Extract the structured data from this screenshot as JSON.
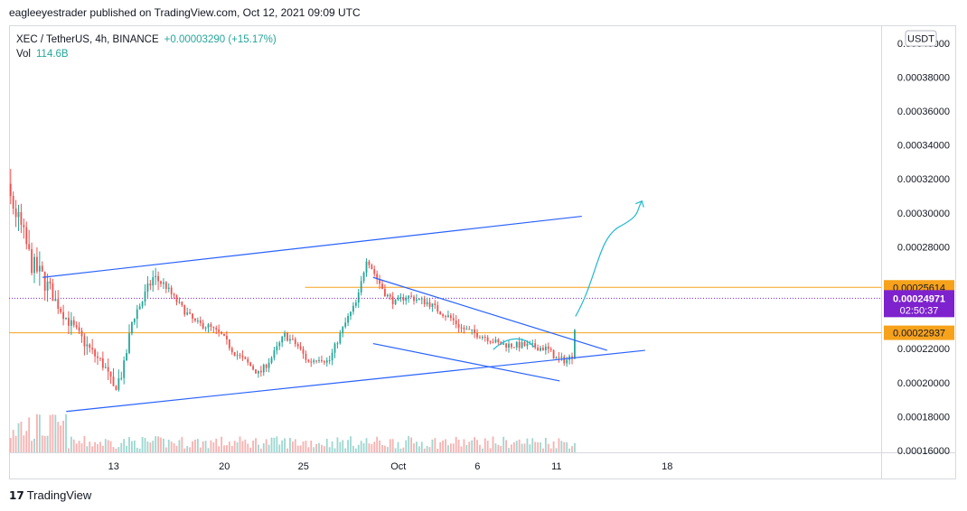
{
  "header": {
    "published_text": "eagleeyestrader published on TradingView.com, Oct 12, 2021 09:09 UTC"
  },
  "legend": {
    "symbol": "XEC / TetherUS, 4h, BINANCE",
    "change": "+0.00003290 (+15.17%)",
    "volume_label": "Vol",
    "volume_value": "114.6B"
  },
  "footer": {
    "logo_glyph": "17",
    "brand": "TradingView"
  },
  "colors": {
    "up": "#26a69a",
    "down": "#ef5350",
    "trend": "#2962ff",
    "level": "#f7a21b",
    "arrow": "#22b8cf",
    "price_label": "#7e22ce"
  },
  "chart_data": {
    "type": "candlestick",
    "currency": "USDT",
    "ylim": [
      0.00016,
      0.00041
    ],
    "y_ticks": [
      "0.00016000",
      "0.00018000",
      "0.00020000",
      "0.00022000",
      "0.00028000",
      "0.00030000",
      "0.00032000",
      "0.00034000",
      "0.00036000",
      "0.00038000",
      "0.00040000"
    ],
    "x_ticks": [
      {
        "label": "6",
        "day": 6
      },
      {
        "label": "13",
        "day": 13
      },
      {
        "label": "20",
        "day": 20
      },
      {
        "label": "25",
        "day": 25
      },
      {
        "label": "Oct",
        "day": 31
      },
      {
        "label": "6",
        "day": 36
      },
      {
        "label": "11",
        "day": 41
      },
      {
        "label": "18",
        "day": 48
      }
    ],
    "xlim_days": [
      -13,
      50
    ],
    "price_labels": [
      {
        "value": 0.00025614,
        "text": "0.00025614",
        "kind": "level"
      },
      {
        "value": 0.00024971,
        "text": "0.00024971",
        "countdown": "02:50:37",
        "kind": "last"
      },
      {
        "value": 0.00022937,
        "text": "0.00022937",
        "kind": "level"
      }
    ],
    "price_path": [
      {
        "d": 4.15,
        "p": 0.000229
      },
      {
        "d": 4.35,
        "p": 0.000325
      },
      {
        "d": 4.6,
        "p": 0.000385
      },
      {
        "d": 4.9,
        "p": 0.000345
      },
      {
        "d": 5.2,
        "p": 0.000365
      },
      {
        "d": 5.6,
        "p": 0.000348
      },
      {
        "d": 6.0,
        "p": 0.00032
      },
      {
        "d": 6.6,
        "p": 0.000305
      },
      {
        "d": 7.2,
        "p": 0.00029
      },
      {
        "d": 7.8,
        "p": 0.00027
      },
      {
        "d": 8.5,
        "p": 0.000262
      },
      {
        "d": 9.2,
        "p": 0.00025
      },
      {
        "d": 10.0,
        "p": 0.000238
      },
      {
        "d": 10.8,
        "p": 0.000228
      },
      {
        "d": 11.6,
        "p": 0.000218
      },
      {
        "d": 12.4,
        "p": 0.00021
      },
      {
        "d": 13.0,
        "p": 0.000196
      },
      {
        "d": 13.6,
        "p": 0.000207
      },
      {
        "d": 14.2,
        "p": 0.000238
      },
      {
        "d": 14.8,
        "p": 0.000248
      },
      {
        "d": 15.5,
        "p": 0.000262
      },
      {
        "d": 16.2,
        "p": 0.000258
      },
      {
        "d": 16.8,
        "p": 0.00025
      },
      {
        "d": 17.4,
        "p": 0.000243
      },
      {
        "d": 18.2,
        "p": 0.000235
      },
      {
        "d": 19.0,
        "p": 0.000233
      },
      {
        "d": 19.8,
        "p": 0.000228
      },
      {
        "d": 20.6,
        "p": 0.000218
      },
      {
        "d": 21.4,
        "p": 0.000212
      },
      {
        "d": 22.2,
        "p": 0.000205
      },
      {
        "d": 23.0,
        "p": 0.000215
      },
      {
        "d": 23.8,
        "p": 0.000228
      },
      {
        "d": 24.6,
        "p": 0.000222
      },
      {
        "d": 25.3,
        "p": 0.000212
      },
      {
        "d": 26.0,
        "p": 0.000215
      },
      {
        "d": 26.6,
        "p": 0.000212
      },
      {
        "d": 27.2,
        "p": 0.000226
      },
      {
        "d": 27.8,
        "p": 0.000238
      },
      {
        "d": 28.4,
        "p": 0.000248
      },
      {
        "d": 29.0,
        "p": 0.000274
      },
      {
        "d": 29.6,
        "p": 0.000262
      },
      {
        "d": 30.2,
        "p": 0.000252
      },
      {
        "d": 30.8,
        "p": 0.000247
      },
      {
        "d": 31.5,
        "p": 0.000251
      },
      {
        "d": 32.2,
        "p": 0.000249
      },
      {
        "d": 32.9,
        "p": 0.000247
      },
      {
        "d": 33.6,
        "p": 0.000242
      },
      {
        "d": 34.3,
        "p": 0.000238
      },
      {
        "d": 35.0,
        "p": 0.000232
      },
      {
        "d": 35.8,
        "p": 0.000229
      },
      {
        "d": 36.5,
        "p": 0.000227
      },
      {
        "d": 37.3,
        "p": 0.000223
      },
      {
        "d": 38.1,
        "p": 0.000222
      },
      {
        "d": 38.9,
        "p": 0.000222
      },
      {
        "d": 39.7,
        "p": 0.000221
      },
      {
        "d": 40.4,
        "p": 0.00022
      },
      {
        "d": 41.0,
        "p": 0.000214
      },
      {
        "d": 41.6,
        "p": 0.000213
      },
      {
        "d": 42.0,
        "p": 0.000216
      },
      {
        "d": 42.3,
        "p": 0.00025
      }
    ],
    "annotations": {
      "trend_lines": [
        {
          "from": {
            "d": 8.5,
            "p": 0.000262
          },
          "to": {
            "d": 42.6,
            "p": 0.000298
          }
        },
        {
          "from": {
            "d": 10.0,
            "p": 0.000183
          },
          "to": {
            "d": 46.6,
            "p": 0.000219
          }
        },
        {
          "from": {
            "d": 29.4,
            "p": 0.000262
          },
          "to": {
            "d": 44.2,
            "p": 0.000219
          }
        },
        {
          "from": {
            "d": 29.4,
            "p": 0.000223
          },
          "to": {
            "d": 41.2,
            "p": 0.000201
          }
        }
      ],
      "horizontal_levels": [
        {
          "p": 0.00025614,
          "from_d": 25.1
        },
        {
          "p": 0.00022937,
          "from_d": -6.0
        }
      ],
      "dotted_last_price": {
        "p": 0.00024971
      }
    }
  }
}
